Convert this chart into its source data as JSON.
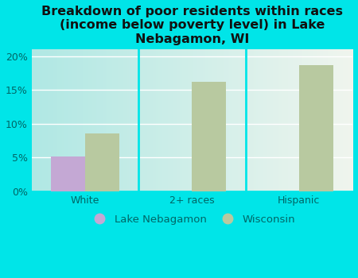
{
  "title": "Breakdown of poor residents within races\n(income below poverty level) in Lake\nNebagamon, WI",
  "categories": [
    "White",
    "2+ races",
    "Hispanic"
  ],
  "lake_nebagamon": [
    5.1,
    0,
    0
  ],
  "wisconsin": [
    8.6,
    16.2,
    18.7
  ],
  "lake_color": "#c4a8d4",
  "wisconsin_color": "#b8c9a0",
  "bg_color": "#00e5e8",
  "plot_bg_left": "#b8e8e8",
  "plot_bg_right": "#f0f5ee",
  "ylim": [
    0,
    21
  ],
  "yticks": [
    0,
    5,
    10,
    15,
    20
  ],
  "ytick_labels": [
    "0%",
    "5%",
    "10%",
    "15%",
    "20%"
  ],
  "bar_width": 0.32,
  "legend_labels": [
    "Lake Nebagamon",
    "Wisconsin"
  ],
  "title_fontsize": 11.5,
  "tick_fontsize": 9,
  "tick_color": "#006666",
  "title_color": "#111111"
}
